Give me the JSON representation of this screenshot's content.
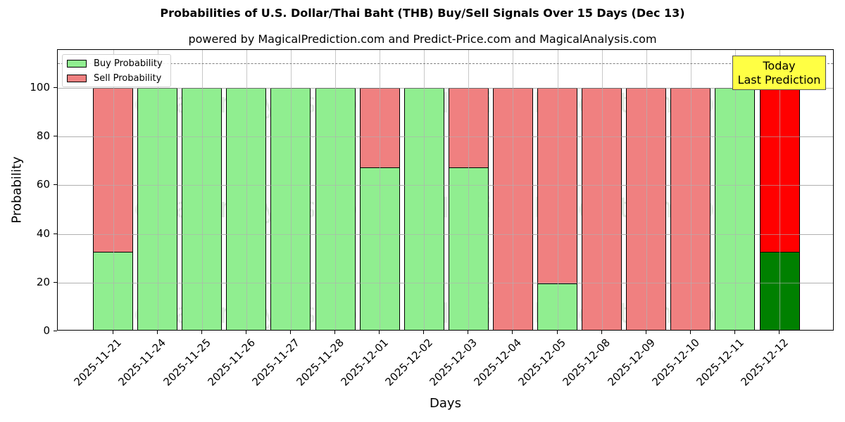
{
  "chart_data": {
    "type": "bar",
    "stacked": true,
    "title": "Probabilities of U.S. Dollar/Thai Baht (THB) Buy/Sell Signals Over 15 Days (Dec 13)",
    "subtitle": "powered by MagicalPrediction.com and Predict-Price.com and MagicalAnalysis.com",
    "xlabel": "Days",
    "ylabel": "Probability",
    "ylim": [
      0,
      115
    ],
    "yticks": [
      0,
      20,
      40,
      60,
      80,
      100
    ],
    "grid": true,
    "legend_position": "upper left",
    "categories": [
      "2025-11-21",
      "2025-11-24",
      "2025-11-25",
      "2025-11-26",
      "2025-11-27",
      "2025-11-28",
      "2025-12-01",
      "2025-12-02",
      "2025-12-03",
      "2025-12-04",
      "2025-12-05",
      "2025-12-08",
      "2025-12-09",
      "2025-12-10",
      "2025-12-11",
      "2025-12-12"
    ],
    "series": [
      {
        "name": "Buy Probability",
        "color": "#90ee90",
        "values": [
          32.7,
          100,
          100,
          100,
          100,
          100,
          67.3,
          100,
          67.3,
          0,
          19.7,
          0,
          0,
          0,
          100,
          32.7
        ]
      },
      {
        "name": "Sell Probability",
        "color": "#f08080",
        "values": [
          67.3,
          0,
          0,
          0,
          0,
          0,
          32.7,
          0,
          32.7,
          100,
          80.3,
          100,
          100,
          100,
          0,
          67.3
        ]
      }
    ],
    "highlight": {
      "index": 15,
      "buy_color": "#008000",
      "sell_color": "#ff0000"
    },
    "reference_line": {
      "y": 110,
      "style": "dashed",
      "color": "#808080"
    },
    "annotation": {
      "text": [
        "Today",
        "Last Prediction"
      ],
      "background": "#ffff44"
    },
    "watermarks": [
      "MagicalAnalysis.com",
      "MagicalPrediction.com"
    ]
  }
}
